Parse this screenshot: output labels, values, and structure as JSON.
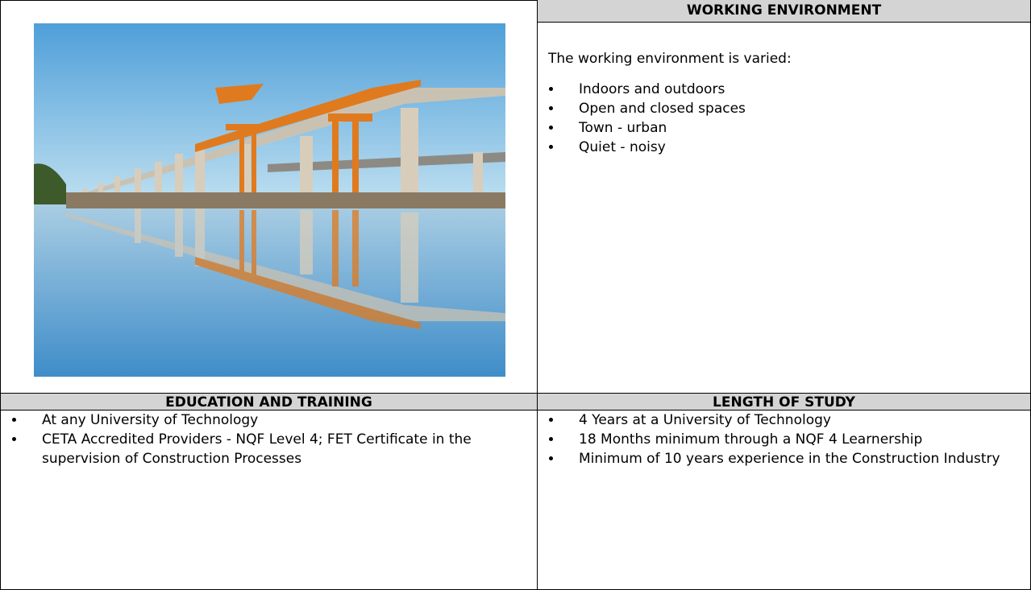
{
  "working_environment": {
    "title": "WORKING ENVIRONMENT",
    "intro": "The working environment is varied:",
    "items": [
      "Indoors and outdoors",
      "Open and closed spaces",
      "Town - urban",
      "Quiet - noisy"
    ]
  },
  "education_and_training": {
    "title": "EDUCATION AND TRAINING",
    "items": [
      "At any University of Technology",
      "CETA Accredited Providers - NQF Level 4; FET Certificate in the supervision of Construction Processes"
    ]
  },
  "length_of_study": {
    "title": "LENGTH OF STUDY",
    "items": [
      "4 Years at a University of Technology",
      "18 Months minimum through a NQF 4 Learnership",
      "Minimum of 10 years experience in the Construction Industry"
    ]
  }
}
